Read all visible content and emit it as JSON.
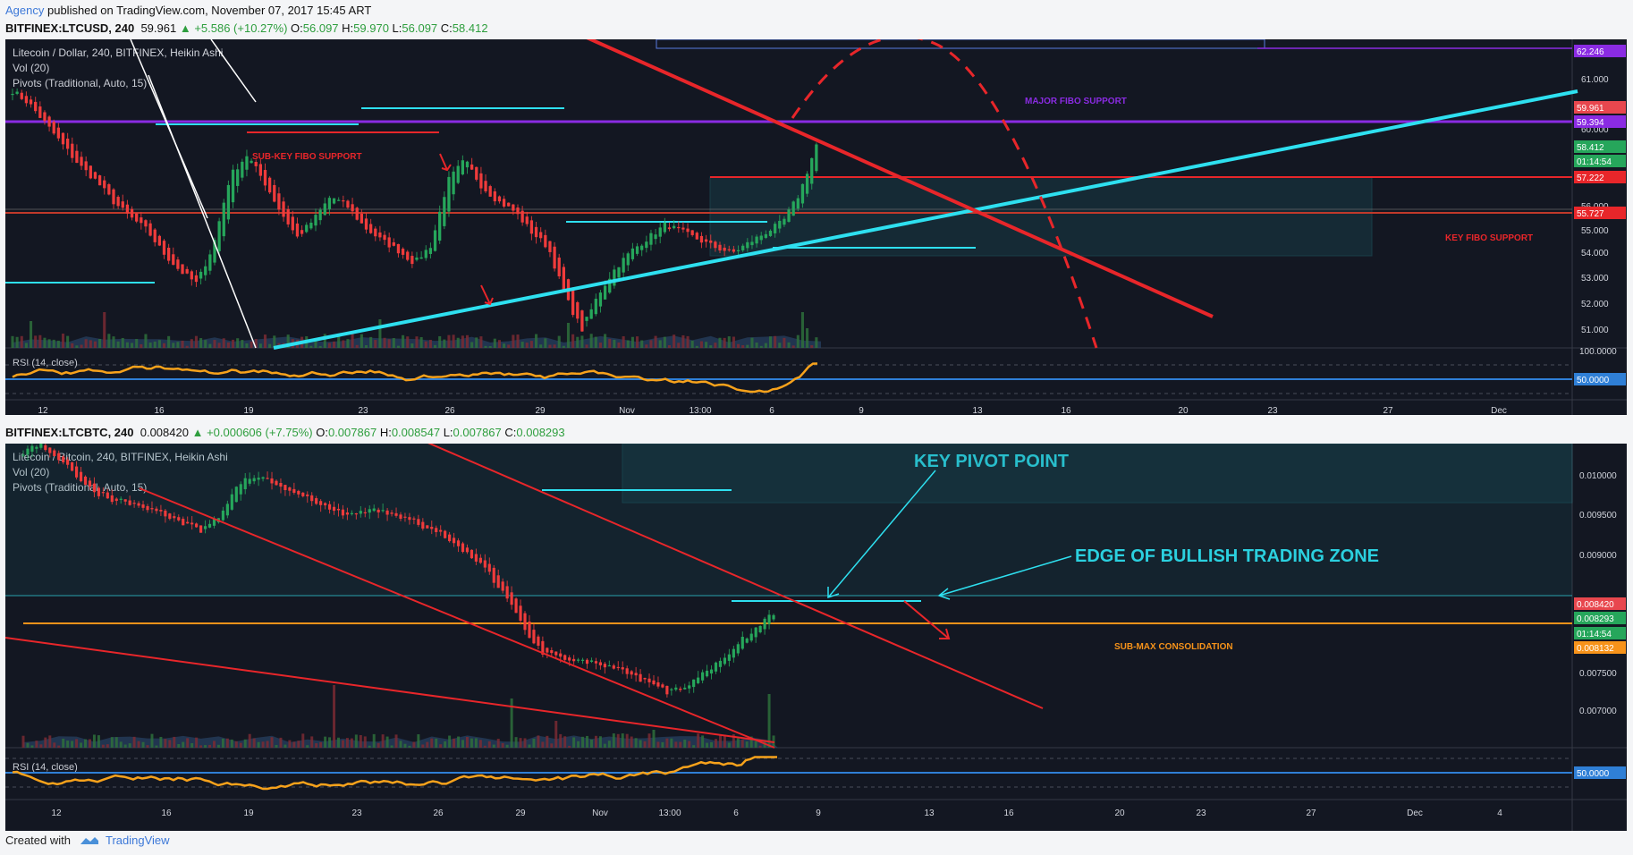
{
  "header": {
    "publisher": "Agency",
    "published_text": " published on TradingView.com, November 07, 2017 15:45 ART"
  },
  "chart1": {
    "symbol": "BITFINEX:LTCUSD, 240",
    "last": "59.961",
    "change": "▲ +5.586 (+10.27%)",
    "o_label": "O:",
    "o": "56.097",
    "h_label": "H:",
    "h": "59.970",
    "l_label": "L:",
    "l": "56.097",
    "c_label": "C:",
    "c": "58.412",
    "legend": [
      "Litecoin / Dollar, 240, BITFINEX, Heikin Ashi",
      "Vol (20)",
      "Pivots (Traditional, Auto, 15)"
    ],
    "rsi_label": "RSI (14, close)",
    "price_labels": [
      "61.000",
      "60.000",
      "59.000",
      "58.000",
      "56.000",
      "55.000",
      "54.000",
      "53.000",
      "52.000",
      "51.000"
    ],
    "tags": [
      "62.246",
      "59.961",
      "59.394",
      "58.412",
      "01:14:54",
      "57.222",
      "55.727"
    ],
    "rsi_labels": [
      "100.0000",
      "50.0000"
    ],
    "time_labels": [
      "12",
      "16",
      "19",
      "23",
      "26",
      "29",
      "Nov",
      "13:00",
      "6",
      "9",
      "13",
      "16",
      "20",
      "23",
      "27",
      "Dec"
    ],
    "annotations": {
      "major_fibo": "MAJOR FIBO SUPPORT",
      "sub_key_fibo": "SUB-KEY FIBO SUPPORT",
      "key_fibo": "KEY FIBO SUPPORT"
    }
  },
  "chart2": {
    "symbol": "BITFINEX:LTCBTC, 240",
    "last": "0.008420",
    "change": "▲ +0.000606 (+7.75%)",
    "o_label": "O:",
    "o": "0.007867",
    "h_label": "H:",
    "h": "0.008547",
    "l_label": "L:",
    "l": "0.007867",
    "c_label": "C:",
    "c": "0.008293",
    "legend": [
      "Litecoin / Bitcoin, 240, BITFINEX, Heikin Ashi",
      "Vol (20)",
      "Pivots (Traditional, Auto, 15)"
    ],
    "rsi_label": "RSI (14, close)",
    "price_labels": [
      "0.010000",
      "0.009500",
      "0.009000",
      "0.007500",
      "0.007000"
    ],
    "tags": [
      "0.008420",
      "0.008293",
      "01:14:54",
      "0.008132"
    ],
    "rsi_labels": [
      "50.0000"
    ],
    "time_labels": [
      "12",
      "16",
      "19",
      "23",
      "26",
      "29",
      "Nov",
      "13:00",
      "6",
      "9",
      "13",
      "16",
      "20",
      "23",
      "27",
      "Dec",
      "4"
    ],
    "annotations": {
      "key_pivot": "KEY PIVOT POINT",
      "edge_zone": "EDGE OF BULLISH TRADING ZONE",
      "sub_max": "SUB-MAX CONSOLIDATION"
    }
  },
  "footer": {
    "created_with": "Created with",
    "brand": "TradingView"
  },
  "colors": {
    "background": "#131722",
    "up": "#26a65b",
    "down": "#ef3b3b",
    "cyan": "#2ee0f0",
    "red_line": "#e8262a",
    "purple": "#8a2be2",
    "orange": "#f7931a",
    "rsi": "#f7a21b",
    "blue_line": "#2f7fd6"
  },
  "chart_data": [
    {
      "type": "candlestick",
      "title": "Litecoin / Dollar, 240, BITFINEX, Heikin Ashi",
      "x_labels": [
        "12",
        "16",
        "19",
        "23",
        "26",
        "29",
        "Nov",
        "13:00",
        "6",
        "9",
        "13",
        "16",
        "20",
        "23",
        "27",
        "Dec"
      ],
      "ylim": [
        50.5,
        62.5
      ],
      "levels": {
        "major_fibo_support": 59.394,
        "key_fibo_support": 55.727,
        "sub_key_line": 57.222,
        "top_line": 62.246
      },
      "close_path": [
        60.5,
        60.0,
        59.2,
        58.4,
        57.6,
        57.0,
        56.2,
        55.6,
        55.1,
        54.2,
        53.5,
        53.0,
        54.5,
        57.2,
        58.0,
        57.0,
        55.8,
        54.8,
        55.5,
        56.4,
        56.0,
        55.2,
        54.7,
        54.3,
        53.8,
        54.5,
        57.0,
        57.8,
        56.8,
        56.2,
        55.8,
        55.0,
        54.4,
        52.5,
        51.2,
        52.6,
        53.6,
        54.3,
        54.8,
        55.3,
        55.0,
        54.7,
        54.4,
        54.2,
        54.6,
        55.0,
        55.4,
        56.5,
        58.4
      ]
    },
    {
      "type": "candlestick",
      "title": "Litecoin / Bitcoin, 240, BITFINEX, Heikin Ashi",
      "x_labels": [
        "12",
        "16",
        "19",
        "23",
        "26",
        "29",
        "Nov",
        "13:00",
        "6",
        "9",
        "13",
        "16",
        "20",
        "23",
        "27",
        "Dec",
        "4"
      ],
      "ylim": [
        0.0066,
        0.0104
      ],
      "levels": {
        "sub_max_consolidation": 0.008132,
        "key_pivot": 0.00855
      },
      "close_path": [
        0.0103,
        0.0104,
        0.0102,
        0.01,
        0.0098,
        0.0097,
        0.00965,
        0.0096,
        0.0095,
        0.0094,
        0.0093,
        0.0095,
        0.0099,
        0.01,
        0.0099,
        0.0098,
        0.0097,
        0.0096,
        0.0095,
        0.00955,
        0.00957,
        0.0095,
        0.0094,
        0.0093,
        0.0092,
        0.009,
        0.0088,
        0.0085,
        0.0081,
        0.0078,
        0.00775,
        0.0077,
        0.00765,
        0.0076,
        0.0075,
        0.0074,
        0.0073,
        0.00735,
        0.0075,
        0.0077,
        0.0079,
        0.0081,
        0.00829
      ]
    }
  ]
}
